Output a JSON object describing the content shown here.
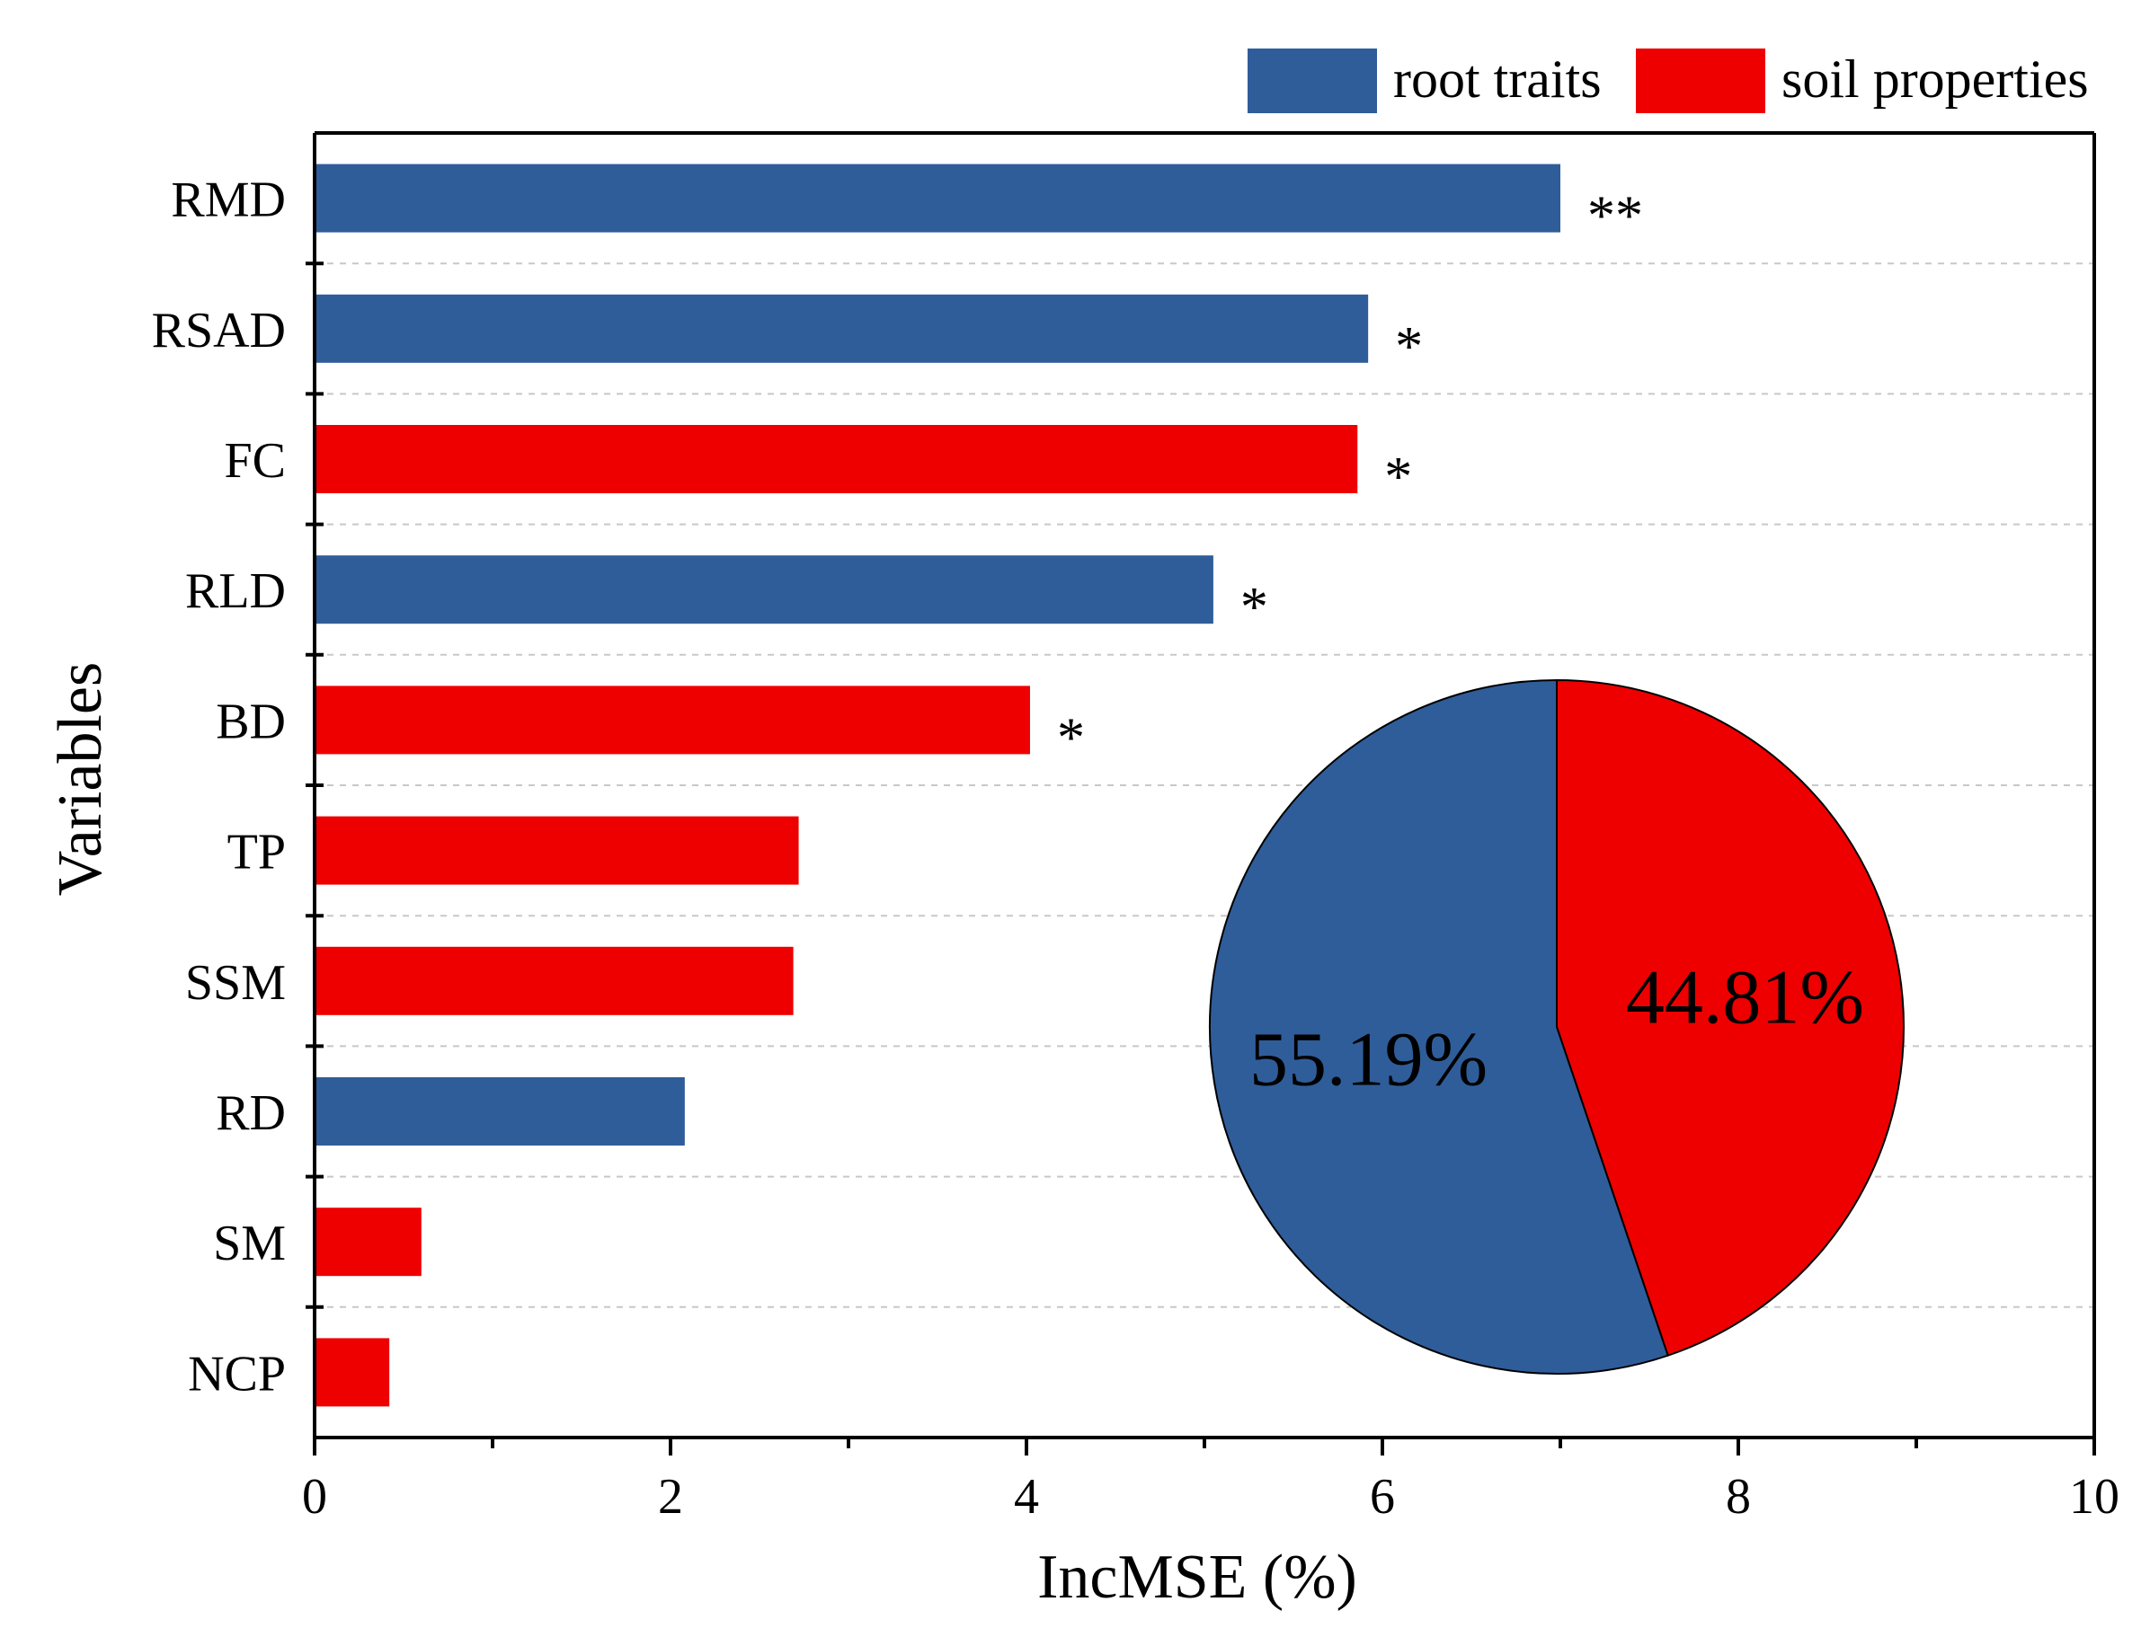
{
  "chart_data": [
    {
      "type": "bar",
      "orientation": "horizontal",
      "title": "",
      "xlabel": "IncMSE (%)",
      "ylabel": "Variables",
      "xlim": [
        0,
        10
      ],
      "xticks": [
        0,
        2,
        4,
        6,
        8,
        10
      ],
      "grid": true,
      "legend": {
        "position": "top-right",
        "entries": [
          {
            "name": "root traits",
            "color": "#2f5d9a"
          },
          {
            "name": "soil properties",
            "color": "#ee0000"
          }
        ]
      },
      "categories": [
        "RMD",
        "RSAD",
        "FC",
        "RLD",
        "BD",
        "TP",
        "SSM",
        "RD",
        "SM",
        "NCP"
      ],
      "values": [
        7.0,
        5.92,
        5.86,
        5.05,
        4.02,
        2.72,
        2.69,
        2.08,
        0.6,
        0.42
      ],
      "groups": [
        "root traits",
        "root traits",
        "soil properties",
        "root traits",
        "soil properties",
        "soil properties",
        "soil properties",
        "root traits",
        "soil properties",
        "soil properties"
      ],
      "significance": [
        "**",
        "*",
        "*",
        "*",
        "*",
        "",
        "",
        "",
        "",
        ""
      ]
    },
    {
      "type": "pie",
      "title": "",
      "slices": [
        {
          "name": "root traits",
          "value": 55.19,
          "label": "55.19%",
          "color": "#2f5d9a"
        },
        {
          "name": "soil properties",
          "value": 44.81,
          "label": "44.81%",
          "color": "#ee0000"
        }
      ]
    }
  ]
}
